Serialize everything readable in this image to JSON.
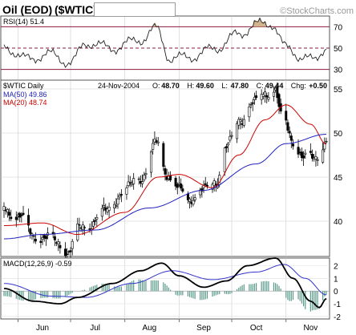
{
  "header": {
    "title": "Oil (EOD)",
    "symbol": "($WTIC)",
    "watermark": "©StockCharts.com"
  },
  "rsi_panel": {
    "label": "RSI(14) 51.4",
    "y_ticks": [
      "70",
      "50",
      "30"
    ]
  },
  "price_panel": {
    "symbol_label": "$WTIC Daily",
    "date_label": "24-Nov-2004",
    "ohlc": [
      {
        "key": "O:",
        "value": "48.70"
      },
      {
        "key": "H:",
        "value": "49.60"
      },
      {
        "key": "L:",
        "value": "47.80"
      },
      {
        "key": "C:",
        "value": "49.44"
      },
      {
        "key": "Chg:",
        "value": "+0.50"
      }
    ],
    "ma50_label": "MA(50) 49.86",
    "ma20_label": "MA(20) 48.74",
    "y_ticks": [
      "55",
      "50",
      "45",
      "40"
    ]
  },
  "macd_panel": {
    "label": "MACD(12,26,9) -0.59",
    "y_ticks": [
      "2",
      "1",
      "0",
      "-1",
      "-2"
    ]
  },
  "x_axis": {
    "months": [
      "Jun",
      "Jul",
      "Aug",
      "Sep",
      "Oct",
      "Nov"
    ]
  },
  "colors": {
    "ma50": "#2020c0",
    "ma20": "#cc0000",
    "rsi_band": "#8b1c3c",
    "overbought_fill": "#d2b48c",
    "macd_line": "#000000",
    "signal_line": "#3333cc",
    "histogram": "#5a9a8a"
  },
  "chart_data": {
    "type": "candlestick",
    "x_start": "2004-05-24",
    "x_end": "2004-11-24",
    "price_anchors": [
      {
        "date": "2004-05-24",
        "value": 41.5
      },
      {
        "date": "2004-06-01",
        "value": 40.5
      },
      {
        "date": "2004-06-10",
        "value": 38.5
      },
      {
        "date": "2004-06-18",
        "value": 38.0
      },
      {
        "date": "2004-06-25",
        "value": 37.5
      },
      {
        "date": "2004-06-30",
        "value": 36.5
      },
      {
        "date": "2004-07-05",
        "value": 39.0
      },
      {
        "date": "2004-07-10",
        "value": 39.5
      },
      {
        "date": "2004-07-20",
        "value": 41.0
      },
      {
        "date": "2004-08-01",
        "value": 43.5
      },
      {
        "date": "2004-08-10",
        "value": 45.0
      },
      {
        "date": "2004-08-19",
        "value": 48.7
      },
      {
        "date": "2004-08-25",
        "value": 45.5
      },
      {
        "date": "2004-09-01",
        "value": 43.5
      },
      {
        "date": "2004-09-05",
        "value": 42.5
      },
      {
        "date": "2004-09-15",
        "value": 43.5
      },
      {
        "date": "2004-09-22",
        "value": 44.5
      },
      {
        "date": "2004-09-28",
        "value": 48.5
      },
      {
        "date": "2004-10-06",
        "value": 51.5
      },
      {
        "date": "2004-10-13",
        "value": 53.5
      },
      {
        "date": "2004-10-22",
        "value": 54.5
      },
      {
        "date": "2004-10-26",
        "value": 55.2
      },
      {
        "date": "2004-10-29",
        "value": 52.0
      },
      {
        "date": "2004-11-05",
        "value": 49.0
      },
      {
        "date": "2004-11-12",
        "value": 47.3
      },
      {
        "date": "2004-11-17",
        "value": 46.8
      },
      {
        "date": "2004-11-24",
        "value": 49.4
      }
    ],
    "ma20_anchors": [
      {
        "date": "2004-05-24",
        "value": 39.5
      },
      {
        "date": "2004-06-15",
        "value": 39.8
      },
      {
        "date": "2004-07-05",
        "value": 38.5
      },
      {
        "date": "2004-08-01",
        "value": 41.0
      },
      {
        "date": "2004-08-20",
        "value": 45.0
      },
      {
        "date": "2004-09-01",
        "value": 45.3
      },
      {
        "date": "2004-09-20",
        "value": 43.8
      },
      {
        "date": "2004-10-05",
        "value": 47.5
      },
      {
        "date": "2004-10-20",
        "value": 51.5
      },
      {
        "date": "2004-11-01",
        "value": 53.2
      },
      {
        "date": "2004-11-15",
        "value": 51.0
      },
      {
        "date": "2004-11-24",
        "value": 48.74
      }
    ],
    "ma50_anchors": [
      {
        "date": "2004-05-24",
        "value": 38.0
      },
      {
        "date": "2004-06-15",
        "value": 38.5
      },
      {
        "date": "2004-07-15",
        "value": 39.0
      },
      {
        "date": "2004-08-15",
        "value": 41.5
      },
      {
        "date": "2004-09-15",
        "value": 43.5
      },
      {
        "date": "2004-10-15",
        "value": 46.5
      },
      {
        "date": "2004-11-01",
        "value": 48.8
      },
      {
        "date": "2004-11-24",
        "value": 49.86
      }
    ],
    "rsi_anchors": [
      {
        "date": "2004-05-24",
        "value": 52
      },
      {
        "date": "2004-06-05",
        "value": 40
      },
      {
        "date": "2004-06-20",
        "value": 44
      },
      {
        "date": "2004-07-01",
        "value": 36
      },
      {
        "date": "2004-07-10",
        "value": 55
      },
      {
        "date": "2004-07-25",
        "value": 50
      },
      {
        "date": "2004-08-10",
        "value": 58
      },
      {
        "date": "2004-08-19",
        "value": 68
      },
      {
        "date": "2004-08-27",
        "value": 40
      },
      {
        "date": "2004-09-08",
        "value": 42
      },
      {
        "date": "2004-09-22",
        "value": 50
      },
      {
        "date": "2004-10-05",
        "value": 63
      },
      {
        "date": "2004-10-15",
        "value": 72
      },
      {
        "date": "2004-10-24",
        "value": 73
      },
      {
        "date": "2004-11-01",
        "value": 50
      },
      {
        "date": "2004-11-10",
        "value": 42
      },
      {
        "date": "2004-11-17",
        "value": 38
      },
      {
        "date": "2004-11-24",
        "value": 51.4
      }
    ],
    "macd_anchors": [
      {
        "date": "2004-05-24",
        "value": 0.2
      },
      {
        "date": "2004-06-10",
        "value": -0.8
      },
      {
        "date": "2004-06-25",
        "value": -1.0
      },
      {
        "date": "2004-07-05",
        "value": -0.5
      },
      {
        "date": "2004-07-25",
        "value": 0.6
      },
      {
        "date": "2004-08-10",
        "value": 1.6
      },
      {
        "date": "2004-08-22",
        "value": 2.2
      },
      {
        "date": "2004-09-01",
        "value": 1.2
      },
      {
        "date": "2004-09-15",
        "value": 0.3
      },
      {
        "date": "2004-09-28",
        "value": 0.8
      },
      {
        "date": "2004-10-10",
        "value": 2.0
      },
      {
        "date": "2004-10-26",
        "value": 2.6
      },
      {
        "date": "2004-11-05",
        "value": 1.0
      },
      {
        "date": "2004-11-15",
        "value": -0.8
      },
      {
        "date": "2004-11-20",
        "value": -1.3
      },
      {
        "date": "2004-11-24",
        "value": -0.59
      }
    ],
    "signal_anchors": [
      {
        "date": "2004-05-24",
        "value": 0.6
      },
      {
        "date": "2004-06-20",
        "value": -0.4
      },
      {
        "date": "2004-07-10",
        "value": -0.5
      },
      {
        "date": "2004-08-05",
        "value": 0.6
      },
      {
        "date": "2004-08-28",
        "value": 1.6
      },
      {
        "date": "2004-09-20",
        "value": 0.9
      },
      {
        "date": "2004-10-15",
        "value": 1.5
      },
      {
        "date": "2004-10-31",
        "value": 2.1
      },
      {
        "date": "2004-11-12",
        "value": 1.0
      },
      {
        "date": "2004-11-24",
        "value": -0.3
      }
    ],
    "ylim_price": [
      36,
      56
    ],
    "ylim_rsi": [
      20,
      80
    ],
    "ylim_macd": [
      -2.2,
      2.6
    ]
  }
}
